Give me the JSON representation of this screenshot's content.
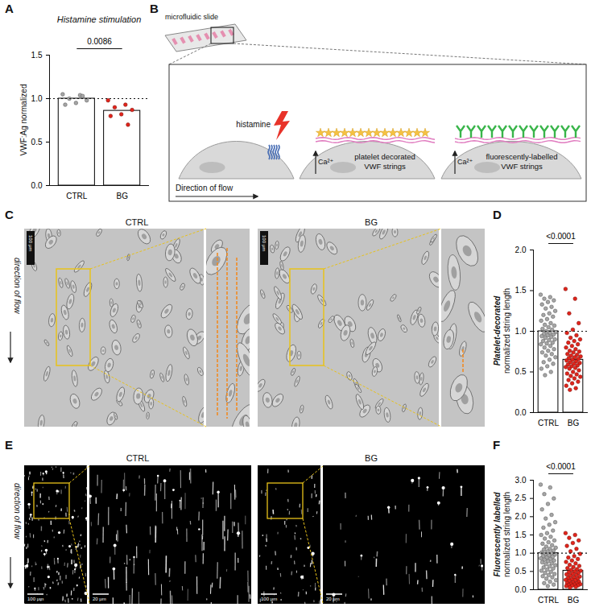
{
  "chart_data": [
    {
      "panel": "A",
      "type": "bar",
      "title": "Histamine stimulation",
      "ylabel": [
        "VWF:Ag normalized"
      ],
      "categories": [
        "CTRL",
        "BG"
      ],
      "values": [
        1.0,
        0.86
      ],
      "points": [
        [
          1.05,
          1.04,
          1.0,
          0.98,
          0.95,
          0.93,
          1.03
        ],
        [
          0.98,
          0.93,
          0.9,
          0.87,
          0.82,
          0.8,
          0.7
        ]
      ],
      "colors": [
        "#a6a6a6",
        "#e3241b"
      ],
      "reference_line": 1,
      "annotation": "0.0086",
      "ylim": [
        0,
        1.5
      ],
      "yticks": [
        {
          "value": 0,
          "label": "0.0"
        },
        {
          "value": 0.5,
          "label": "0.5"
        },
        {
          "value": 1,
          "label": "1.0"
        },
        {
          "value": 1.5,
          "label": "1.5"
        }
      ]
    },
    {
      "panel": "D",
      "type": "bar",
      "ylabel": [
        "Platelet-decorated",
        "normalized string length"
      ],
      "categories": [
        "CTRL",
        "BG"
      ],
      "values": [
        1.0,
        0.65
      ],
      "points": [
        [
          1.45,
          1.42,
          1.4,
          1.38,
          1.36,
          1.33,
          1.3,
          1.28,
          1.25,
          1.22,
          1.2,
          1.18,
          1.15,
          1.13,
          1.1,
          1.08,
          1.07,
          1.05,
          1.03,
          1.02,
          1.0,
          0.99,
          0.98,
          0.97,
          0.96,
          0.95,
          0.94,
          0.93,
          0.92,
          0.9,
          0.89,
          0.88,
          0.86,
          0.85,
          0.84,
          0.82,
          0.8,
          0.78,
          0.76,
          0.74,
          0.72,
          0.7,
          0.68,
          0.65,
          0.62,
          0.6,
          0.57,
          0.54,
          0.5,
          0.46
        ],
        [
          1.52,
          1.4,
          1.22,
          1.1,
          1.02,
          0.98,
          0.95,
          0.92,
          0.9,
          0.88,
          0.86,
          0.84,
          0.82,
          0.8,
          0.78,
          0.76,
          0.75,
          0.74,
          0.72,
          0.71,
          0.7,
          0.69,
          0.68,
          0.67,
          0.66,
          0.65,
          0.64,
          0.63,
          0.62,
          0.61,
          0.6,
          0.59,
          0.58,
          0.57,
          0.56,
          0.55,
          0.54,
          0.52,
          0.5,
          0.48,
          0.47,
          0.45,
          0.44,
          0.42,
          0.4,
          0.38,
          0.36,
          0.33,
          0.3,
          0.28
        ]
      ],
      "colors": [
        "#a6a6a6",
        "#e3241b"
      ],
      "reference_line": 1,
      "annotation": "<0.0001",
      "ylim": [
        0,
        2
      ],
      "yticks": [
        {
          "value": 0,
          "label": "0.0"
        },
        {
          "value": 0.5,
          "label": "0.5"
        },
        {
          "value": 1,
          "label": "1.0"
        },
        {
          "value": 1.5,
          "label": "1.5"
        },
        {
          "value": 2,
          "label": "2.0"
        }
      ]
    },
    {
      "panel": "F",
      "type": "bar",
      "ylabel": [
        "Fluorescently labelled",
        "normalized string length"
      ],
      "categories": [
        "CTRL",
        "BG"
      ],
      "values": [
        1.0,
        0.52
      ],
      "points": [
        [
          2.88,
          2.8,
          2.62,
          2.5,
          2.35,
          2.2,
          2.05,
          1.95,
          1.85,
          1.78,
          1.7,
          1.62,
          1.55,
          1.5,
          1.45,
          1.4,
          1.35,
          1.3,
          1.26,
          1.22,
          1.18,
          1.15,
          1.12,
          1.1,
          1.07,
          1.05,
          1.02,
          1.0,
          0.98,
          0.96,
          0.94,
          0.92,
          0.9,
          0.88,
          0.86,
          0.84,
          0.82,
          0.8,
          0.78,
          0.75,
          0.72,
          0.7,
          0.67,
          0.64,
          0.61,
          0.58,
          0.55,
          0.52,
          0.49,
          0.46,
          0.43,
          0.4,
          0.37,
          0.34,
          0.3,
          0.26,
          0.22,
          0.18,
          0.14,
          0.1
        ],
        [
          1.55,
          1.5,
          1.42,
          1.35,
          1.28,
          1.2,
          1.12,
          1.05,
          0.98,
          0.92,
          0.88,
          0.84,
          0.8,
          0.76,
          0.72,
          0.68,
          0.65,
          0.62,
          0.59,
          0.56,
          0.54,
          0.52,
          0.5,
          0.48,
          0.46,
          0.44,
          0.42,
          0.4,
          0.38,
          0.36,
          0.34,
          0.32,
          0.3,
          0.28,
          0.27,
          0.26,
          0.24,
          0.22,
          0.2,
          0.18,
          0.17,
          0.16,
          0.15,
          0.14,
          0.13,
          0.12,
          0.11,
          0.1,
          0.08,
          0.06
        ]
      ],
      "colors": [
        "#a6a6a6",
        "#e3241b"
      ],
      "reference_line": 1,
      "annotation": "<0.0001",
      "ylim": [
        0,
        3
      ],
      "yticks": [
        {
          "value": 0,
          "label": "0.0"
        },
        {
          "value": 0.5,
          "label": "0.5"
        },
        {
          "value": 1,
          "label": "1.0"
        },
        {
          "value": 1.5,
          "label": "1.5"
        },
        {
          "value": 2,
          "label": "2.0"
        },
        {
          "value": 2.5,
          "label": "2.5"
        },
        {
          "value": 3,
          "label": "3.0"
        }
      ]
    }
  ],
  "panels": {
    "B": {
      "panel": "B",
      "slide": "microfluidic slide",
      "stimulus": "histamine",
      "ion": "Ca²⁺",
      "flow": "Direction of flow",
      "strings": [
        [
          "platelet decorated",
          "VWF strings"
        ],
        [
          "fluorescently-labelled",
          "VWF strings"
        ]
      ]
    },
    "C": {
      "panel": "C",
      "flow": "direction of flow",
      "groups": [
        "CTRL",
        "BG"
      ],
      "scale_bar": "100 µm"
    },
    "E": {
      "panel": "E",
      "flow": "direction of flow",
      "groups": [
        "CTRL",
        "BG"
      ],
      "scale_bars": [
        "100 µm",
        "20 µm"
      ]
    }
  }
}
